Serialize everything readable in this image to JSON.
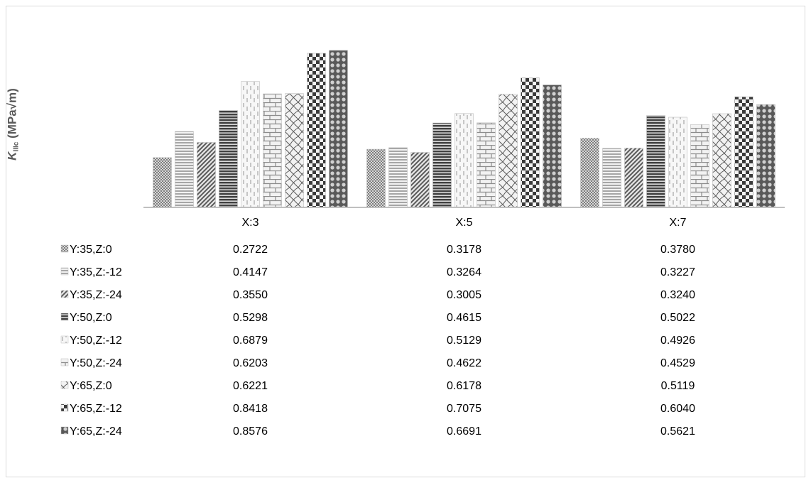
{
  "chart_data": {
    "type": "bar",
    "ylabel": {
      "symbol": "K",
      "subscript": "IIIc",
      "unit": "(MPa√m)"
    },
    "categories": [
      "X:3",
      "X:5",
      "X:7"
    ],
    "series": [
      {
        "name": "Y:35,Z:0",
        "values": [
          "0.2722",
          "0.3178",
          "0.3780"
        ],
        "pattern": "dots-dense"
      },
      {
        "name": "Y:35,Z:-12",
        "values": [
          "0.4147",
          "0.3264",
          "0.3227"
        ],
        "pattern": "hstripes-light"
      },
      {
        "name": "Y:35,Z:-24",
        "values": [
          "0.3550",
          "0.3005",
          "0.3240"
        ],
        "pattern": "diagonal"
      },
      {
        "name": "Y:50,Z:0",
        "values": [
          "0.5298",
          "0.4615",
          "0.5022"
        ],
        "pattern": "hstripes-dark"
      },
      {
        "name": "Y:50,Z:-12",
        "values": [
          "0.6879",
          "0.5129",
          "0.4926"
        ],
        "pattern": "vdash"
      },
      {
        "name": "Y:50,Z:-24",
        "values": [
          "0.6203",
          "0.4622",
          "0.4529"
        ],
        "pattern": "brick"
      },
      {
        "name": "Y:65,Z:0",
        "values": [
          "0.6221",
          "0.6178",
          "0.5119"
        ],
        "pattern": "wave"
      },
      {
        "name": "Y:65,Z:-12",
        "values": [
          "0.8418",
          "0.7075",
          "0.6040"
        ],
        "pattern": "checker"
      },
      {
        "name": "Y:65,Z:-24",
        "values": [
          "0.8576",
          "0.6691",
          "0.5621"
        ],
        "pattern": "circles"
      }
    ],
    "ylim": [
      0,
      0.9
    ],
    "grid": false,
    "legend": "data-table",
    "axis_color": "#bfbfbf",
    "text_color": "#000000"
  }
}
